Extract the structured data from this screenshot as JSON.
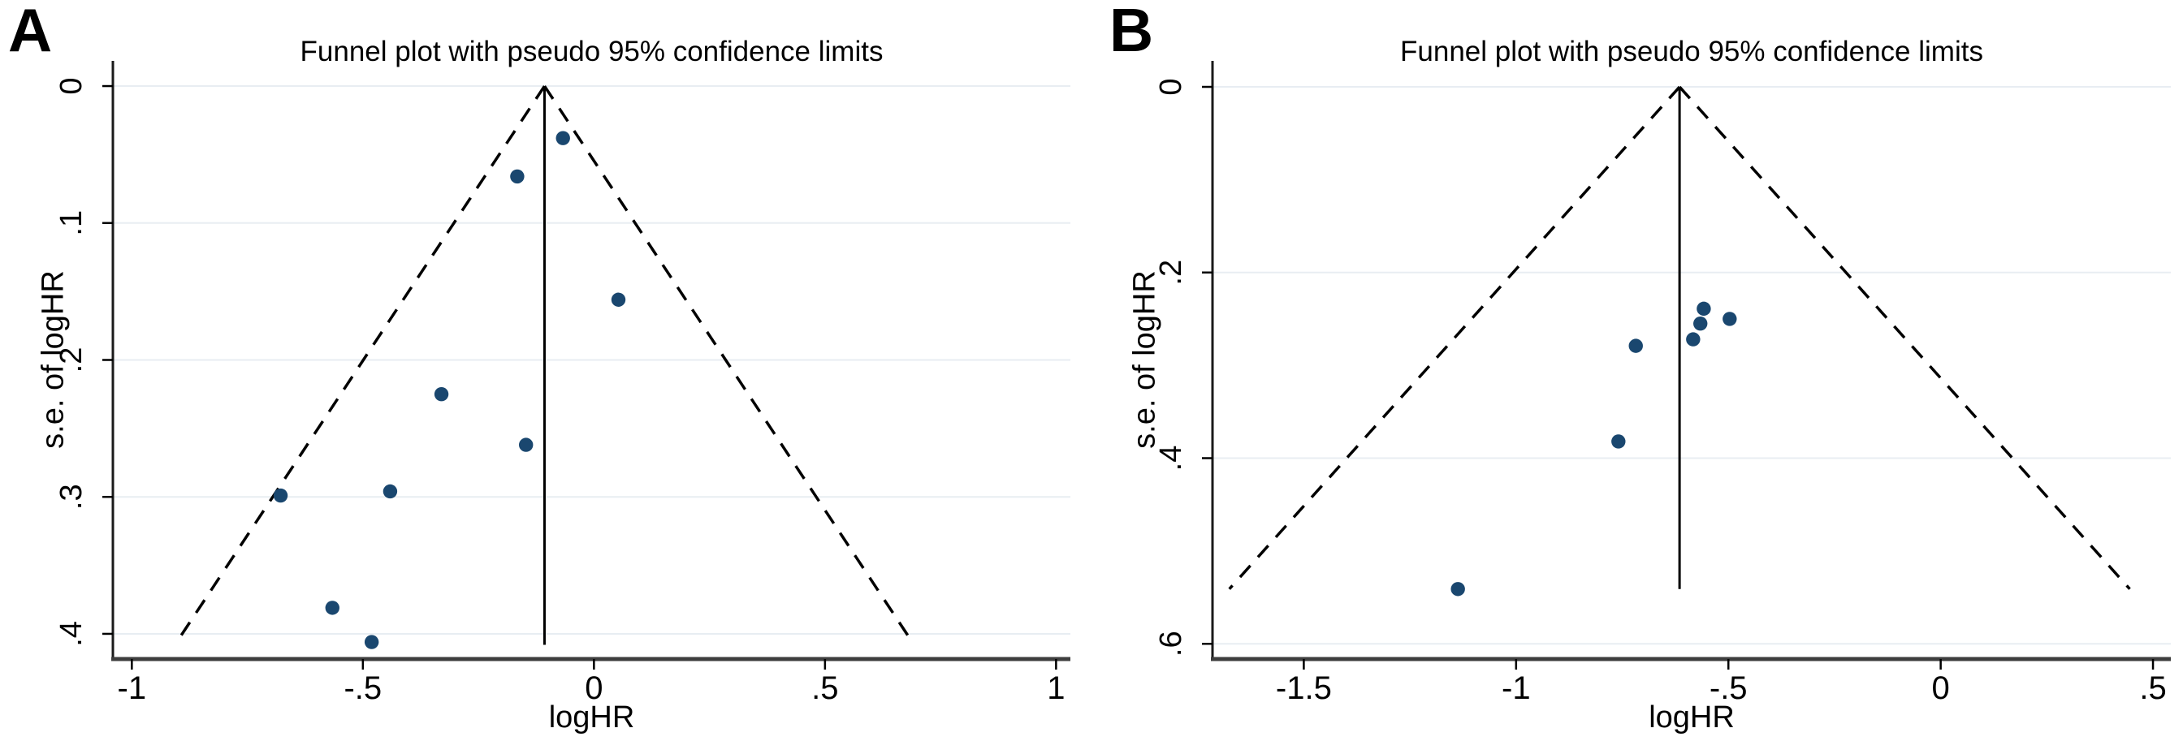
{
  "style": {
    "background": "#ffffff",
    "dot_color": "#1a476f",
    "grid_color": "#e8edf2",
    "x_axis_color": "#3e3e3e",
    "y_axis_color": "#1a1a1a",
    "line_color": "#000000",
    "text_color": "#000000"
  },
  "chart_data": [
    {
      "panel_label": "A",
      "type": "scatter",
      "title": "Funnel plot with pseudo 95% confidence limits",
      "xlabel": "logHR",
      "ylabel": "s.e. of logHR",
      "y_axis_inverted": true,
      "grid": true,
      "legend": false,
      "xlim": [
        -1.041,
        1.031
      ],
      "ylim": [
        -0.0184,
        0.4184
      ],
      "x_ticks": {
        "values": [
          -1,
          -0.5,
          0,
          0.5,
          1
        ],
        "labels": [
          "-1",
          "-.5",
          "0",
          ".5",
          "1"
        ]
      },
      "y_ticks": {
        "values": [
          0,
          0.1,
          0.2,
          0.3,
          0.4
        ],
        "labels": [
          "0",
          ".1",
          ".2",
          ".3",
          ".4"
        ]
      },
      "pooled_center_logHR": -0.107,
      "funnel_z": 1.96,
      "funnel_max_se": 0.404,
      "center_line_max_se": 0.408,
      "points": [
        {
          "logHR": -0.067,
          "se": 0.038
        },
        {
          "logHR": -0.166,
          "se": 0.066
        },
        {
          "logHR": 0.053,
          "se": 0.156
        },
        {
          "logHR": -0.33,
          "se": 0.225
        },
        {
          "logHR": -0.147,
          "se": 0.262
        },
        {
          "logHR": -0.678,
          "se": 0.299
        },
        {
          "logHR": -0.441,
          "se": 0.296
        },
        {
          "logHR": -0.566,
          "se": 0.381
        },
        {
          "logHR": -0.481,
          "se": 0.406
        }
      ]
    },
    {
      "panel_label": "B",
      "type": "scatter",
      "title": "Funnel plot with pseudo 95% confidence limits",
      "xlabel": "logHR",
      "ylabel": "s.e. of logHR",
      "y_axis_inverted": true,
      "grid": true,
      "legend": false,
      "xlim": [
        -1.715,
        0.542
      ],
      "ylim": [
        -0.028,
        0.6164
      ],
      "x_ticks": {
        "values": [
          -1.5,
          -1,
          -0.5,
          0,
          0.5
        ],
        "labels": [
          "-1.5",
          "-1",
          "-.5",
          "0",
          ".5"
        ]
      },
      "y_ticks": {
        "values": [
          0,
          0.2,
          0.4,
          0.6
        ],
        "labels": [
          "0",
          ".2",
          ".4",
          ".6"
        ]
      },
      "pooled_center_logHR": -0.615,
      "funnel_z": 1.96,
      "funnel_max_se": 0.541,
      "center_line_max_se": 0.541,
      "points": [
        {
          "logHR": -0.558,
          "se": 0.239
        },
        {
          "logHR": -0.497,
          "se": 0.25
        },
        {
          "logHR": -0.566,
          "se": 0.255
        },
        {
          "logHR": -0.583,
          "se": 0.272
        },
        {
          "logHR": -0.718,
          "se": 0.279
        },
        {
          "logHR": -0.759,
          "se": 0.382
        },
        {
          "logHR": -1.137,
          "se": 0.541
        }
      ]
    }
  ]
}
